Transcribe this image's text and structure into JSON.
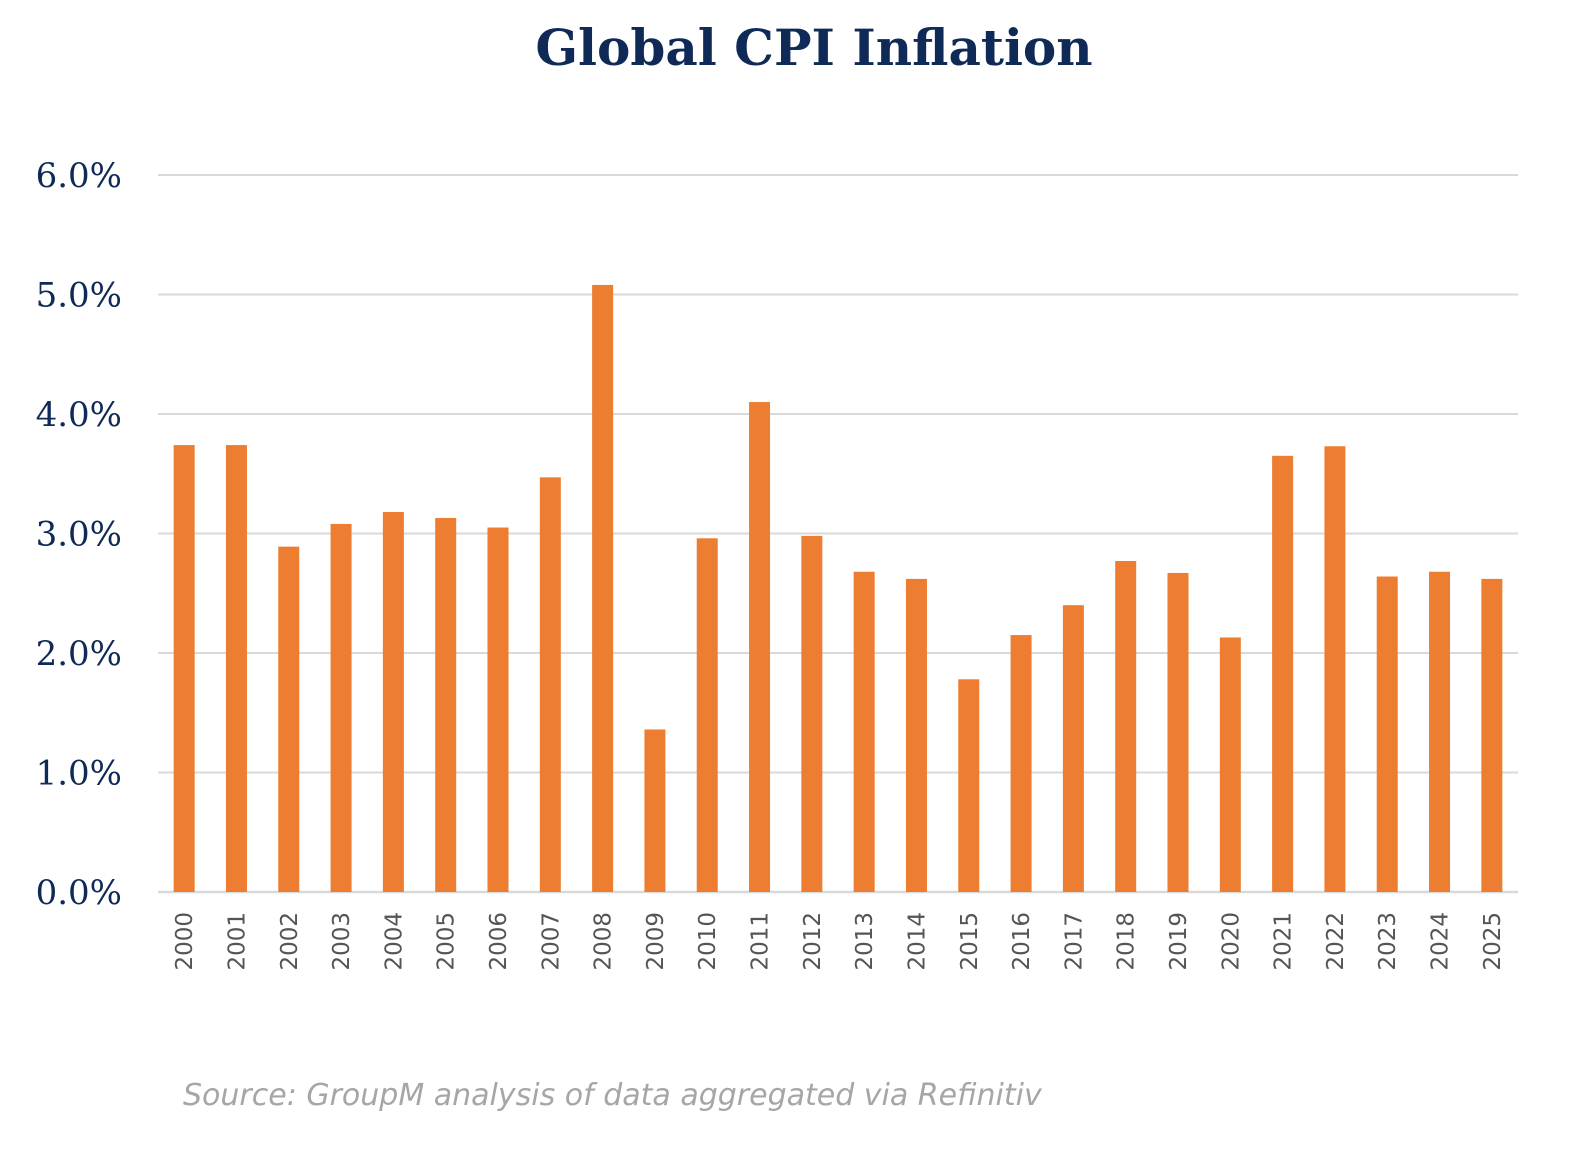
{
  "chart_data": {
    "type": "bar",
    "title": "Global CPI Inflation",
    "source": "Source: GroupM analysis of data aggregated via Refinitiv",
    "categories": [
      "2000",
      "2001",
      "2002",
      "2003",
      "2004",
      "2005",
      "2006",
      "2007",
      "2008",
      "2009",
      "2010",
      "2011",
      "2012",
      "2013",
      "2014",
      "2015",
      "2016",
      "2017",
      "2018",
      "2019",
      "2020",
      "2021",
      "2022",
      "2023",
      "2024",
      "2025"
    ],
    "values": [
      3.74,
      3.74,
      2.89,
      3.08,
      3.18,
      3.13,
      3.05,
      3.47,
      5.08,
      1.36,
      2.96,
      4.1,
      2.98,
      2.68,
      2.62,
      1.78,
      2.15,
      2.4,
      2.77,
      2.67,
      2.13,
      3.65,
      3.73,
      2.64,
      2.68,
      2.62
    ],
    "yticks": [
      "0.0%",
      "1.0%",
      "2.0%",
      "3.0%",
      "4.0%",
      "5.0%",
      "6.0%"
    ],
    "ylim": [
      0,
      6
    ],
    "grid": true,
    "colors": {
      "bar": "#ed7d31",
      "grid": "#d9d9d9",
      "title": "#0f2a56",
      "ytick": "#0f2a56",
      "xtick": "#555555",
      "source": "#a6a6a6"
    }
  }
}
